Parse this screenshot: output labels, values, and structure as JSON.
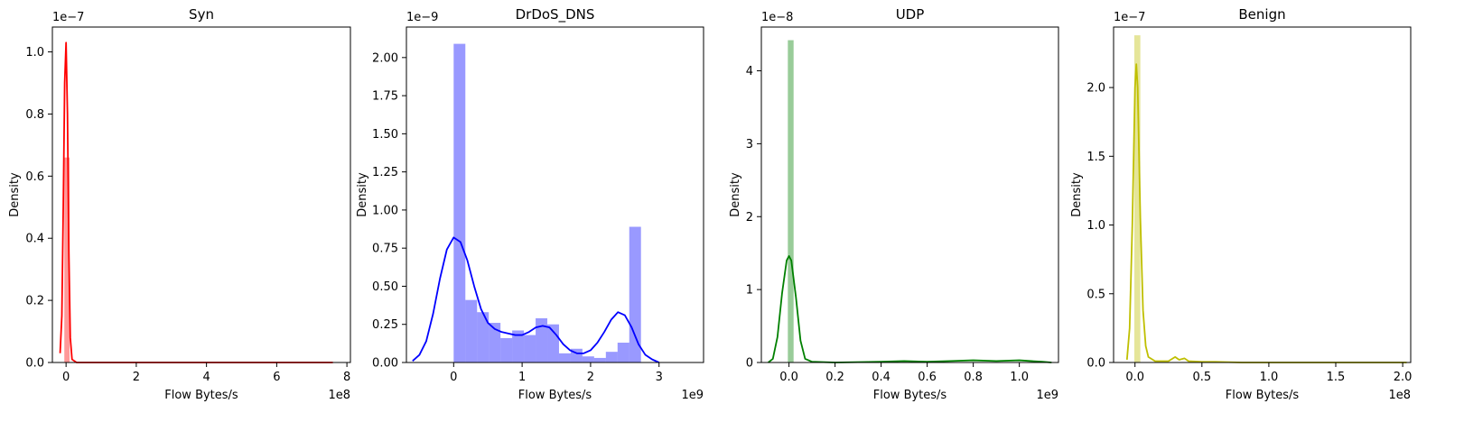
{
  "chart_data": [
    {
      "type": "histogram+kde",
      "title": "Syn",
      "xlabel": "Flow Bytes/s",
      "ylabel": "Density",
      "x_offset_label": "1e8",
      "y_offset_label": "1e−7",
      "color": "#ff0000",
      "xlim": [
        -0.39,
        8.1
      ],
      "ylim": [
        0,
        1.08
      ],
      "xticks": [
        0,
        2,
        4,
        6,
        8
      ],
      "xtick_labels": [
        "0",
        "2",
        "4",
        "6",
        "8"
      ],
      "yticks": [
        0,
        0.2,
        0.4,
        0.6,
        0.8,
        1.0
      ],
      "ytick_labels": [
        "0.0",
        "0.2",
        "0.4",
        "0.6",
        "0.8",
        "1.0"
      ],
      "bins": [
        {
          "x0": -0.05,
          "x1": 0.1,
          "density": 0.66
        }
      ],
      "kde": [
        [
          -0.17,
          0.03
        ],
        [
          -0.12,
          0.15
        ],
        [
          -0.08,
          0.5
        ],
        [
          -0.04,
          0.9
        ],
        [
          0.0,
          1.03
        ],
        [
          0.04,
          0.8
        ],
        [
          0.08,
          0.35
        ],
        [
          0.12,
          0.08
        ],
        [
          0.17,
          0.01
        ],
        [
          0.3,
          0.0
        ],
        [
          7.6,
          0.0
        ]
      ]
    },
    {
      "type": "histogram+kde",
      "title": "DrDoS_DNS",
      "xlabel": "Flow Bytes/s",
      "ylabel": "Density",
      "x_offset_label": "1e9",
      "y_offset_label": "1e−9",
      "color": "#0000ff",
      "xlim": [
        -0.69,
        3.65
      ],
      "ylim": [
        0,
        2.2
      ],
      "xticks": [
        0,
        1,
        2,
        3
      ],
      "xtick_labels": [
        "0",
        "1",
        "2",
        "3"
      ],
      "yticks": [
        0,
        0.25,
        0.5,
        0.75,
        1.0,
        1.25,
        1.5,
        1.75,
        2.0
      ],
      "ytick_labels": [
        "0.00",
        "0.25",
        "0.50",
        "0.75",
        "1.00",
        "1.25",
        "1.50",
        "1.75",
        "2.00"
      ],
      "bins": [
        {
          "x0": 0.0,
          "x1": 0.171,
          "density": 2.09
        },
        {
          "x0": 0.171,
          "x1": 0.342,
          "density": 0.41
        },
        {
          "x0": 0.342,
          "x1": 0.513,
          "density": 0.33
        },
        {
          "x0": 0.513,
          "x1": 0.684,
          "density": 0.26
        },
        {
          "x0": 0.684,
          "x1": 0.855,
          "density": 0.16
        },
        {
          "x0": 0.855,
          "x1": 1.026,
          "density": 0.21
        },
        {
          "x0": 1.026,
          "x1": 1.197,
          "density": 0.18
        },
        {
          "x0": 1.197,
          "x1": 1.368,
          "density": 0.29
        },
        {
          "x0": 1.368,
          "x1": 1.539,
          "density": 0.25
        },
        {
          "x0": 1.539,
          "x1": 1.71,
          "density": 0.06
        },
        {
          "x0": 1.71,
          "x1": 1.881,
          "density": 0.09
        },
        {
          "x0": 1.881,
          "x1": 2.052,
          "density": 0.04
        },
        {
          "x0": 2.052,
          "x1": 2.223,
          "density": 0.03
        },
        {
          "x0": 2.223,
          "x1": 2.394,
          "density": 0.07
        },
        {
          "x0": 2.394,
          "x1": 2.565,
          "density": 0.13
        },
        {
          "x0": 2.565,
          "x1": 2.736,
          "density": 0.89
        }
      ],
      "kde": [
        [
          -0.6,
          0.01
        ],
        [
          -0.5,
          0.05
        ],
        [
          -0.4,
          0.14
        ],
        [
          -0.3,
          0.32
        ],
        [
          -0.2,
          0.55
        ],
        [
          -0.1,
          0.74
        ],
        [
          0.0,
          0.82
        ],
        [
          0.1,
          0.79
        ],
        [
          0.2,
          0.67
        ],
        [
          0.3,
          0.5
        ],
        [
          0.4,
          0.35
        ],
        [
          0.5,
          0.26
        ],
        [
          0.6,
          0.22
        ],
        [
          0.7,
          0.2
        ],
        [
          0.8,
          0.19
        ],
        [
          0.9,
          0.18
        ],
        [
          1.0,
          0.18
        ],
        [
          1.1,
          0.2
        ],
        [
          1.2,
          0.23
        ],
        [
          1.3,
          0.24
        ],
        [
          1.4,
          0.23
        ],
        [
          1.5,
          0.18
        ],
        [
          1.6,
          0.12
        ],
        [
          1.7,
          0.08
        ],
        [
          1.8,
          0.06
        ],
        [
          1.9,
          0.06
        ],
        [
          2.0,
          0.08
        ],
        [
          2.1,
          0.13
        ],
        [
          2.2,
          0.2
        ],
        [
          2.3,
          0.28
        ],
        [
          2.4,
          0.33
        ],
        [
          2.5,
          0.31
        ],
        [
          2.6,
          0.23
        ],
        [
          2.7,
          0.12
        ],
        [
          2.8,
          0.05
        ],
        [
          2.9,
          0.02
        ],
        [
          3.0,
          0.0
        ]
      ]
    },
    {
      "type": "histogram+kde",
      "title": "UDP",
      "xlabel": "Flow Bytes/s",
      "ylabel": "Density",
      "x_offset_label": "1e9",
      "y_offset_label": "1e−8",
      "color": "#008000",
      "xlim": [
        -0.12,
        1.17
      ],
      "ylim": [
        0,
        4.6
      ],
      "xticks": [
        0,
        0.2,
        0.4,
        0.6,
        0.8,
        1.0
      ],
      "xtick_labels": [
        "0.0",
        "0.2",
        "0.4",
        "0.6",
        "0.8",
        "1.0"
      ],
      "yticks": [
        0,
        1,
        2,
        3,
        4
      ],
      "ytick_labels": [
        "0",
        "1",
        "2",
        "3",
        "4"
      ],
      "bins": [
        {
          "x0": -0.005,
          "x1": 0.02,
          "density": 4.42
        }
      ],
      "kde": [
        [
          -0.09,
          0.0
        ],
        [
          -0.07,
          0.05
        ],
        [
          -0.05,
          0.35
        ],
        [
          -0.03,
          0.95
        ],
        [
          -0.01,
          1.4
        ],
        [
          0.0,
          1.46
        ],
        [
          0.01,
          1.4
        ],
        [
          0.03,
          0.9
        ],
        [
          0.05,
          0.3
        ],
        [
          0.07,
          0.05
        ],
        [
          0.1,
          0.01
        ],
        [
          0.2,
          0.0
        ],
        [
          0.4,
          0.01
        ],
        [
          0.5,
          0.02
        ],
        [
          0.6,
          0.01
        ],
        [
          0.7,
          0.02
        ],
        [
          0.8,
          0.03
        ],
        [
          0.9,
          0.02
        ],
        [
          1.0,
          0.03
        ],
        [
          1.1,
          0.01
        ],
        [
          1.14,
          0.0
        ]
      ]
    },
    {
      "type": "histogram+kde",
      "title": "Benign",
      "xlabel": "Flow Bytes/s",
      "ylabel": "Density",
      "x_offset_label": "1e8",
      "y_offset_label": "1e−7",
      "color": "#bfbf00",
      "xlim": [
        -0.16,
        2.06
      ],
      "ylim": [
        0,
        2.44
      ],
      "xticks": [
        0,
        0.5,
        1.0,
        1.5,
        2.0
      ],
      "xtick_labels": [
        "0.0",
        "0.5",
        "1.0",
        "1.5",
        "2.0"
      ],
      "yticks": [
        0,
        0.5,
        1.0,
        1.5,
        2.0
      ],
      "ytick_labels": [
        "0.0",
        "0.5",
        "1.0",
        "1.5",
        "2.0"
      ],
      "bins": [
        {
          "x0": -0.005,
          "x1": 0.04,
          "density": 2.38
        }
      ],
      "kde": [
        [
          -0.06,
          0.02
        ],
        [
          -0.04,
          0.25
        ],
        [
          -0.02,
          1.0
        ],
        [
          0.0,
          2.0
        ],
        [
          0.01,
          2.17
        ],
        [
          0.02,
          2.0
        ],
        [
          0.04,
          1.05
        ],
        [
          0.06,
          0.38
        ],
        [
          0.08,
          0.12
        ],
        [
          0.1,
          0.04
        ],
        [
          0.15,
          0.01
        ],
        [
          0.25,
          0.01
        ],
        [
          0.3,
          0.04
        ],
        [
          0.33,
          0.02
        ],
        [
          0.37,
          0.03
        ],
        [
          0.4,
          0.01
        ],
        [
          0.5,
          0.005
        ],
        [
          0.6,
          0.005
        ],
        [
          0.8,
          0.0
        ],
        [
          2.03,
          0.0
        ]
      ]
    }
  ]
}
